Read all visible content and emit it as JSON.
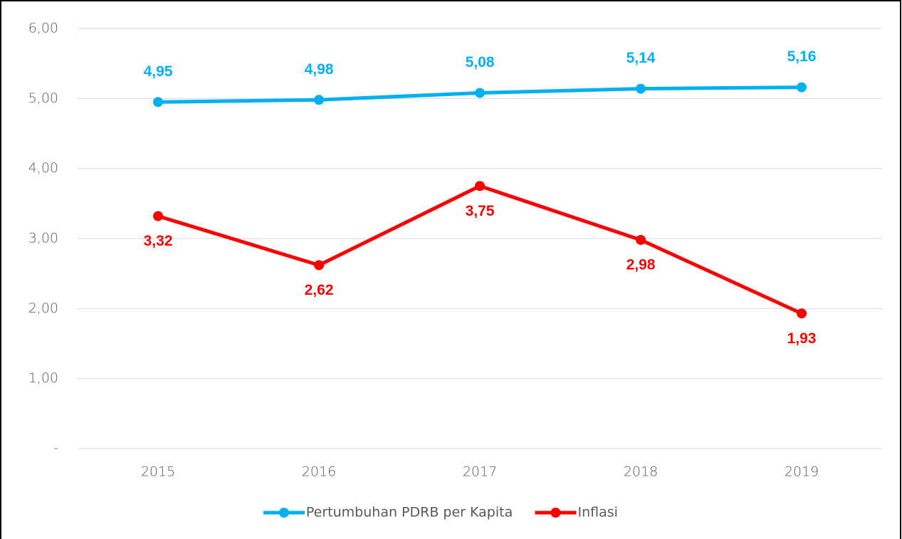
{
  "chart_data": {
    "type": "line",
    "categories": [
      "2015",
      "2016",
      "2017",
      "2018",
      "2019"
    ],
    "series": [
      {
        "name": "Pertumbuhan PDRB per Kapita",
        "color": "#00b0f0",
        "values": [
          4.95,
          4.98,
          5.08,
          5.14,
          5.16
        ],
        "value_labels": [
          "4,95",
          "4,98",
          "5,08",
          "5,14",
          "5,16"
        ]
      },
      {
        "name": "Inflasi",
        "color": "#ff0000",
        "values": [
          3.32,
          2.62,
          3.75,
          2.98,
          1.93
        ],
        "value_labels": [
          "3,32",
          "2,62",
          "3,75",
          "2,98",
          "1,93"
        ]
      }
    ],
    "ylim": [
      0,
      6
    ],
    "yticks": [
      {
        "value": 0,
        "label": "-"
      },
      {
        "value": 1,
        "label": "1,00"
      },
      {
        "value": 2,
        "label": "2,00"
      },
      {
        "value": 3,
        "label": "3,00"
      },
      {
        "value": 4,
        "label": "4,00"
      },
      {
        "value": 5,
        "label": "5,00"
      },
      {
        "value": 6,
        "label": "6,00"
      }
    ],
    "grid": true,
    "legend": "bottom"
  }
}
